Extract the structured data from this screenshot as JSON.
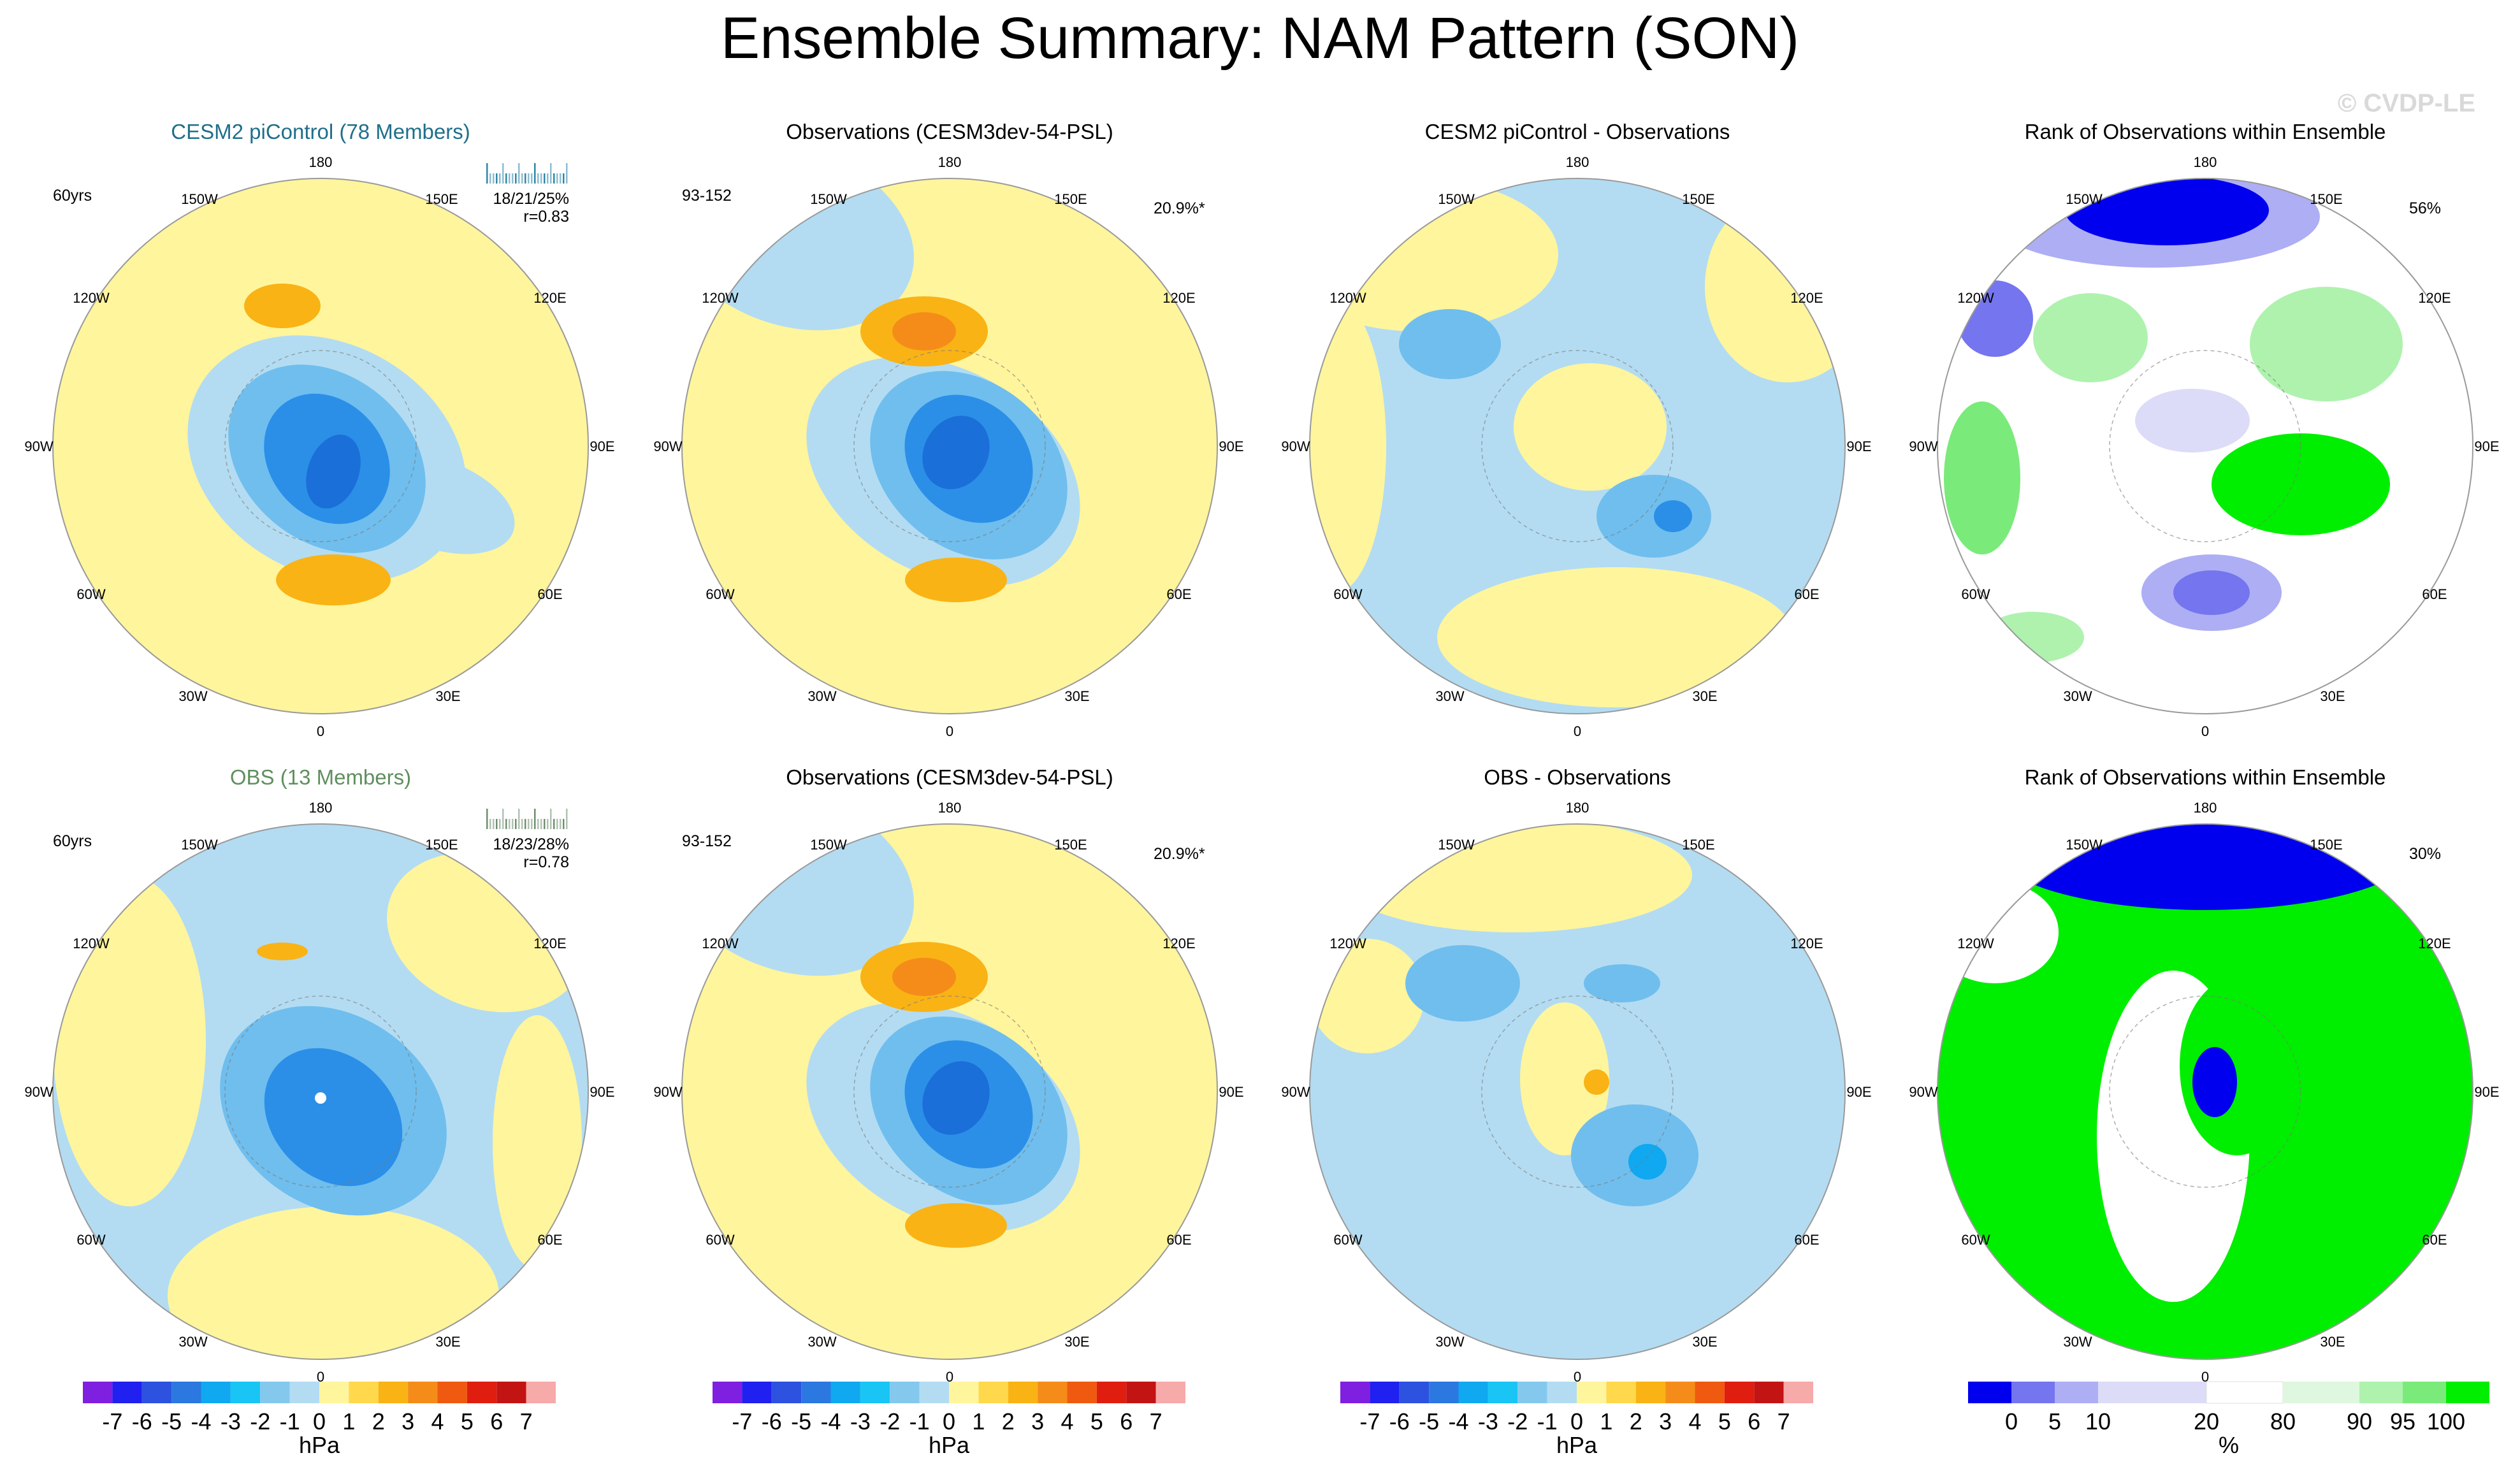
{
  "title": "Ensemble Summary: NAM Pattern (SON)",
  "watermark": "© CVDP-LE",
  "lon_labels": [
    "180",
    "150E",
    "120E",
    "90E",
    "60E",
    "30E",
    "0",
    "30W",
    "60W",
    "90W",
    "120W",
    "150W"
  ],
  "colors": {
    "neg": [
      "#7f1fe0",
      "#2020f0",
      "#2d52e0",
      "#2b78e0",
      "#10a8f0",
      "#18c5f5",
      "#84c8ee",
      "#b3dcf2"
    ],
    "pos": [
      "#fff59d",
      "#ffd84c",
      "#f9b315",
      "#f58c1a",
      "#ef5a10",
      "#e01e10",
      "#c31414",
      "#f7aaaa"
    ],
    "rank": [
      "#0000ee",
      "#7575f0",
      "#aeaef5",
      "#dcdcf8",
      "#ffffff",
      "#def7de",
      "#aef2ae",
      "#7aea7a",
      "#00ee00"
    ],
    "map_pos": "#fff59d",
    "map_neg": "#b3dcf2",
    "orange": "#f9b315",
    "mid_blue": "#6fbeee",
    "deep_blue": "#2b8fe8",
    "rank_green": "#00ee00",
    "rank_blue": "#0000ee",
    "title_top_left": "#1f6f8b",
    "title_bot_left": "#5f8f5f"
  },
  "panels": [
    {
      "title": "CESM2 piControl (78 Members)",
      "left_label": "60yrs",
      "stat1": "18/21/25%",
      "stat2": "r=0.83"
    },
    {
      "title": "Observations (CESM3dev-54-PSL)",
      "left_label": "93-152",
      "right_label": "20.9%*"
    },
    {
      "title": "CESM2 piControl - Observations"
    },
    {
      "title": "Rank of Observations within Ensemble",
      "right_label": "56%"
    },
    {
      "title": "OBS (13 Members)",
      "left_label": "60yrs",
      "stat1": "18/23/28%",
      "stat2": "r=0.78"
    },
    {
      "title": "Observations (CESM3dev-54-PSL)",
      "left_label": "93-152",
      "right_label": "20.9%*"
    },
    {
      "title": "OBS - Observations"
    },
    {
      "title": "Rank of Observations within Ensemble",
      "right_label": "30%"
    }
  ],
  "chart_data": [
    {
      "type": "heatmap",
      "projection": "north polar stereographic",
      "variable": "sea level pressure anomaly",
      "units": "hPa",
      "colorbar_labels": [
        "-7",
        "-6",
        "-5",
        "-4",
        "-3",
        "-2",
        "-1",
        "0",
        "1",
        "2",
        "3",
        "4",
        "5",
        "6",
        "7"
      ],
      "colorbar_unit": "hPa"
    },
    {
      "type": "heatmap",
      "projection": "north polar stereographic",
      "variable": "rank of observations",
      "units": "%",
      "colorbar_labels": [
        "0",
        "5",
        "10",
        "20",
        "80",
        "90",
        "95",
        "100"
      ],
      "colorbar_unit": "%"
    }
  ]
}
